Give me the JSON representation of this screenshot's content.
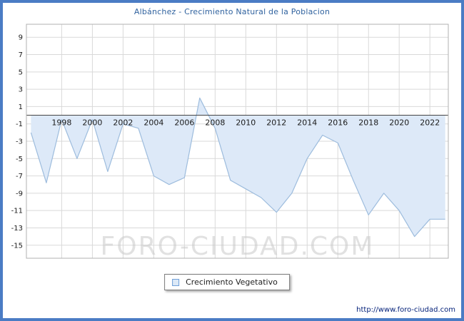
{
  "page": {
    "border_color": "#4b7cc4"
  },
  "chart_data": {
    "type": "area",
    "title": "Albánchez - Crecimiento Natural de la Poblacion",
    "x": [
      1996,
      1997,
      1998,
      1999,
      2000,
      2001,
      2002,
      2003,
      2004,
      2005,
      2006,
      2007,
      2008,
      2009,
      2010,
      2011,
      2012,
      2013,
      2014,
      2015,
      2016,
      2017,
      2018,
      2019,
      2020,
      2021,
      2022,
      2023
    ],
    "values": [
      -2,
      -7.8,
      -0.5,
      -5,
      -0.5,
      -6.5,
      -1,
      -1.5,
      -7,
      -8,
      -7.2,
      2,
      -1.5,
      -7.5,
      -8.5,
      -9.5,
      -11.2,
      -9,
      -5,
      -2.3,
      -3.2,
      -7.5,
      -11.5,
      -9,
      -11,
      -14,
      -12,
      -12
    ],
    "xlim": [
      1995.7,
      2023.2
    ],
    "ylim": [
      -16.5,
      10.5
    ],
    "xticks": [
      1998,
      2000,
      2002,
      2004,
      2006,
      2008,
      2010,
      2012,
      2014,
      2016,
      2018,
      2020,
      2022
    ],
    "yticks": [
      9,
      7,
      5,
      3,
      1,
      -1,
      -3,
      -5,
      -7,
      -9,
      -11,
      -13,
      -15
    ],
    "grid": true,
    "baseline": 0,
    "legend": [
      "Crecimiento Vegetativo"
    ],
    "legend_position": "bottom",
    "title_color": "#31639f",
    "line_color": "#9dbcdd",
    "fill_color": "#dde9f8",
    "grid_color": "#d9d9d9",
    "axis_color": "#444444",
    "plot_border_color": "#b0b0b0",
    "tick_label_color": "#1a1a1a"
  },
  "watermark": {
    "text": "FORO-CIUDAD.COM",
    "color": "#c9c9c9",
    "opacity": 0.55
  },
  "footer": {
    "url": "http://www.foro-ciudad.com"
  }
}
